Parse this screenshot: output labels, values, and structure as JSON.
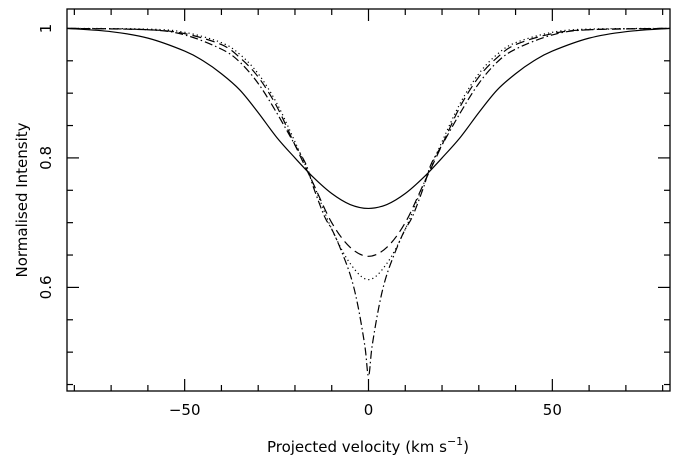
{
  "chart_data": {
    "type": "line",
    "xlabel": "Projected velocity (km s",
    "xlabel_sup": "−1",
    "xlabel_close": ")",
    "ylabel": "Normalised Intensity",
    "xlim": [
      -82,
      82
    ],
    "ylim": [
      0.44,
      1.03
    ],
    "x_ticks": [
      -50,
      0,
      50
    ],
    "x_tick_labels": [
      "−50",
      "0",
      "50"
    ],
    "y_ticks": [
      0.6,
      0.8,
      1
    ],
    "y_tick_labels": [
      "0.6",
      "0.8",
      "1"
    ],
    "grid": false,
    "series": [
      {
        "style": "solid",
        "x": [
          -82,
          -70,
          -60,
          -50,
          -45,
          -40,
          -35,
          -30,
          -25,
          -20,
          -15,
          -10,
          -5,
          0,
          5,
          10,
          15,
          20,
          25,
          30,
          35,
          40,
          45,
          50,
          60,
          70,
          82
        ],
        "y": [
          1.0,
          0.995,
          0.985,
          0.965,
          0.95,
          0.93,
          0.905,
          0.87,
          0.832,
          0.8,
          0.77,
          0.745,
          0.728,
          0.722,
          0.728,
          0.745,
          0.77,
          0.8,
          0.832,
          0.87,
          0.905,
          0.93,
          0.95,
          0.965,
          0.985,
          0.995,
          1.0
        ]
      },
      {
        "style": "dashed",
        "x": [
          -82,
          -60,
          -50,
          -40,
          -35,
          -30,
          -25,
          -20,
          -15,
          -10,
          -5,
          0,
          5,
          10,
          15,
          20,
          25,
          30,
          35,
          40,
          50,
          60,
          82
        ],
        "y": [
          1.0,
          0.998,
          0.992,
          0.975,
          0.955,
          0.925,
          0.88,
          0.82,
          0.76,
          0.7,
          0.662,
          0.648,
          0.662,
          0.7,
          0.76,
          0.82,
          0.88,
          0.925,
          0.955,
          0.975,
          0.992,
          0.998,
          1.0
        ]
      },
      {
        "style": "dotted",
        "x": [
          -82,
          -60,
          -50,
          -40,
          -35,
          -30,
          -25,
          -20,
          -15,
          -10,
          -5,
          0,
          5,
          10,
          15,
          20,
          25,
          30,
          35,
          40,
          50,
          60,
          82
        ],
        "y": [
          1.0,
          0.999,
          0.994,
          0.978,
          0.96,
          0.93,
          0.885,
          0.825,
          0.76,
          0.69,
          0.637,
          0.612,
          0.637,
          0.69,
          0.76,
          0.825,
          0.885,
          0.93,
          0.96,
          0.978,
          0.994,
          0.999,
          1.0
        ]
      },
      {
        "style": "dashdot",
        "x": [
          -82,
          -60,
          -50,
          -40,
          -35,
          -30,
          -25,
          -20,
          -17,
          -15,
          -12,
          -10,
          -8,
          -5,
          -3,
          -1,
          0,
          1,
          3,
          5,
          8,
          10,
          12,
          15,
          17,
          20,
          25,
          30,
          35,
          40,
          50,
          60,
          82
        ],
        "y": [
          1.0,
          0.998,
          0.99,
          0.968,
          0.948,
          0.915,
          0.87,
          0.82,
          0.79,
          0.755,
          0.71,
          0.69,
          0.665,
          0.62,
          0.575,
          0.51,
          0.463,
          0.51,
          0.575,
          0.62,
          0.665,
          0.69,
          0.71,
          0.755,
          0.79,
          0.82,
          0.87,
          0.915,
          0.948,
          0.968,
          0.99,
          0.998,
          1.0
        ]
      }
    ]
  }
}
